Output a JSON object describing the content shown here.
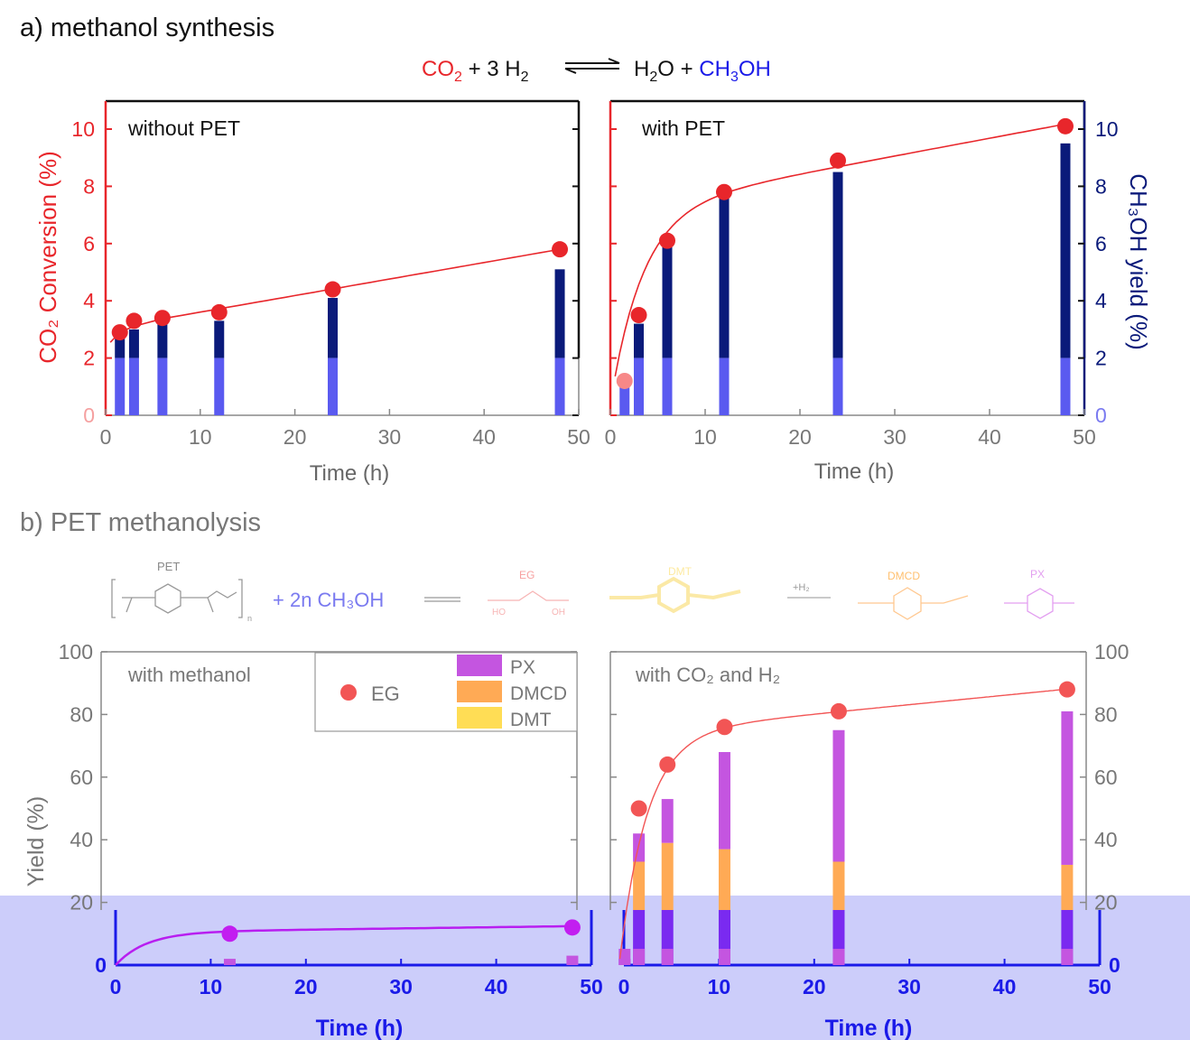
{
  "panel_a": {
    "label": "a) methanol synthesis",
    "eq": {
      "co2": "CO",
      "co2_sub": "2",
      "plus_3h2": " + 3 H",
      "h2_sub": "2",
      "h2o": "H",
      "h2o_sub": "2",
      "h2o_o": "O",
      "plus": " + ",
      "ch3oh_a": "CH",
      "ch3oh_sub": "3",
      "ch3oh_b": "OH"
    },
    "ylabel_left": "CO₂ Conversion (%)",
    "ylabel_right": "CH₃OH yield (%)",
    "xlabel": "Time (h)"
  },
  "panel_b": {
    "label": "b) PET methanolysis",
    "scheme": {
      "pet": "PET",
      "n": "n",
      "reagent": "+ 2n CH₃OH",
      "eg": "EG",
      "dmt": "DMT",
      "h2": "+H₂",
      "dmcd": "DMCD",
      "px": "PX",
      "ho": "HO",
      "oh": "OH"
    },
    "ylabel": "Yield (%)",
    "xlabel": "Time (h)",
    "legend": {
      "eg": "EG",
      "px": "PX",
      "dmcd": "DMCD",
      "dmt": "DMT"
    }
  },
  "colors": {
    "red": "#e8262b",
    "navy": "#0a1a7a",
    "blue_light": "#5a5af0",
    "purple": "#c455e0",
    "orange": "#ffaa55",
    "yellow": "#ffdd55",
    "band": "#cccdfa",
    "axis_blue": "#1a1ae8"
  },
  "chart_data": [
    {
      "type": "bar",
      "title": "without PET",
      "xlabel": "Time (h)",
      "ylabel": "CO₂ Conversion (%)",
      "y2label": "CH₃OH yield (%)",
      "xlim": [
        0,
        50
      ],
      "ylim": [
        0,
        10.6
      ],
      "y2lim": [
        0,
        10.6
      ],
      "xticks": [
        0,
        10,
        20,
        30,
        40,
        50
      ],
      "yticks": [
        0,
        2,
        4,
        6,
        8,
        10
      ],
      "x": [
        1.5,
        3,
        6,
        12,
        24,
        48
      ],
      "series": [
        {
          "name": "CO2 conversion",
          "kind": "scatter-line",
          "values": [
            2.9,
            3.3,
            3.4,
            3.6,
            4.4,
            5.8
          ]
        },
        {
          "name": "CH3OH yield",
          "kind": "bar",
          "values": [
            2.7,
            3.0,
            3.2,
            3.3,
            4.1,
            5.1
          ]
        }
      ]
    },
    {
      "type": "bar",
      "title": "with PET",
      "xlabel": "Time (h)",
      "ylabel": "CO₂ Conversion (%)",
      "y2label": "CH₃OH yield (%)",
      "xlim": [
        0,
        50
      ],
      "ylim": [
        0,
        10.6
      ],
      "y2lim": [
        0,
        10.6
      ],
      "xticks": [
        0,
        10,
        20,
        30,
        40,
        50
      ],
      "yticks": [
        0,
        2,
        4,
        6,
        8,
        10
      ],
      "x": [
        1.5,
        3,
        6,
        12,
        24,
        48
      ],
      "series": [
        {
          "name": "CO2 conversion",
          "kind": "scatter-line",
          "values": [
            1.2,
            3.5,
            6.1,
            7.8,
            8.9,
            10.1
          ]
        },
        {
          "name": "CH3OH yield",
          "kind": "bar",
          "values": [
            1.1,
            3.2,
            6.0,
            7.7,
            8.5,
            9.5
          ]
        }
      ]
    },
    {
      "type": "bar",
      "title": "with methanol",
      "xlabel": "Time (h)",
      "ylabel": "Yield (%)",
      "xlim": [
        0,
        50
      ],
      "ylim": [
        0,
        100
      ],
      "xticks": [
        0,
        10,
        20,
        30,
        40,
        50
      ],
      "yticks": [
        0,
        20,
        40,
        60,
        80,
        100
      ],
      "x": [
        12,
        48
      ],
      "series": [
        {
          "name": "EG",
          "kind": "scatter-line",
          "values": [
            10,
            12
          ]
        },
        {
          "name": "DMT",
          "kind": "stacked-bar",
          "values": [
            2,
            3
          ]
        },
        {
          "name": "DMCD",
          "kind": "stacked-bar",
          "values": [
            0,
            0
          ]
        },
        {
          "name": "PX",
          "kind": "stacked-bar",
          "values": [
            0,
            0
          ]
        }
      ]
    },
    {
      "type": "bar",
      "title": "with CO₂ and H₂",
      "xlabel": "Time (h)",
      "ylabel": "Yield (%)",
      "xlim": [
        0,
        50
      ],
      "ylim": [
        0,
        100
      ],
      "xticks": [
        0,
        10,
        20,
        30,
        40,
        50
      ],
      "yticks": [
        0,
        20,
        40,
        60,
        80,
        100
      ],
      "x": [
        1.5,
        3,
        6,
        12,
        24,
        48
      ],
      "series": [
        {
          "name": "EG",
          "kind": "scatter-line",
          "values": [
            2,
            50,
            64,
            76,
            81,
            88
          ]
        },
        {
          "name": "DMT",
          "kind": "stacked-bar",
          "values": [
            2,
            5,
            10,
            8,
            5,
            3
          ]
        },
        {
          "name": "DMCD",
          "kind": "stacked-bar",
          "values": [
            0,
            28,
            29,
            29,
            28,
            29
          ]
        },
        {
          "name": "PX",
          "kind": "stacked-bar",
          "values": [
            0,
            9,
            14,
            31,
            42,
            49
          ]
        }
      ]
    }
  ]
}
